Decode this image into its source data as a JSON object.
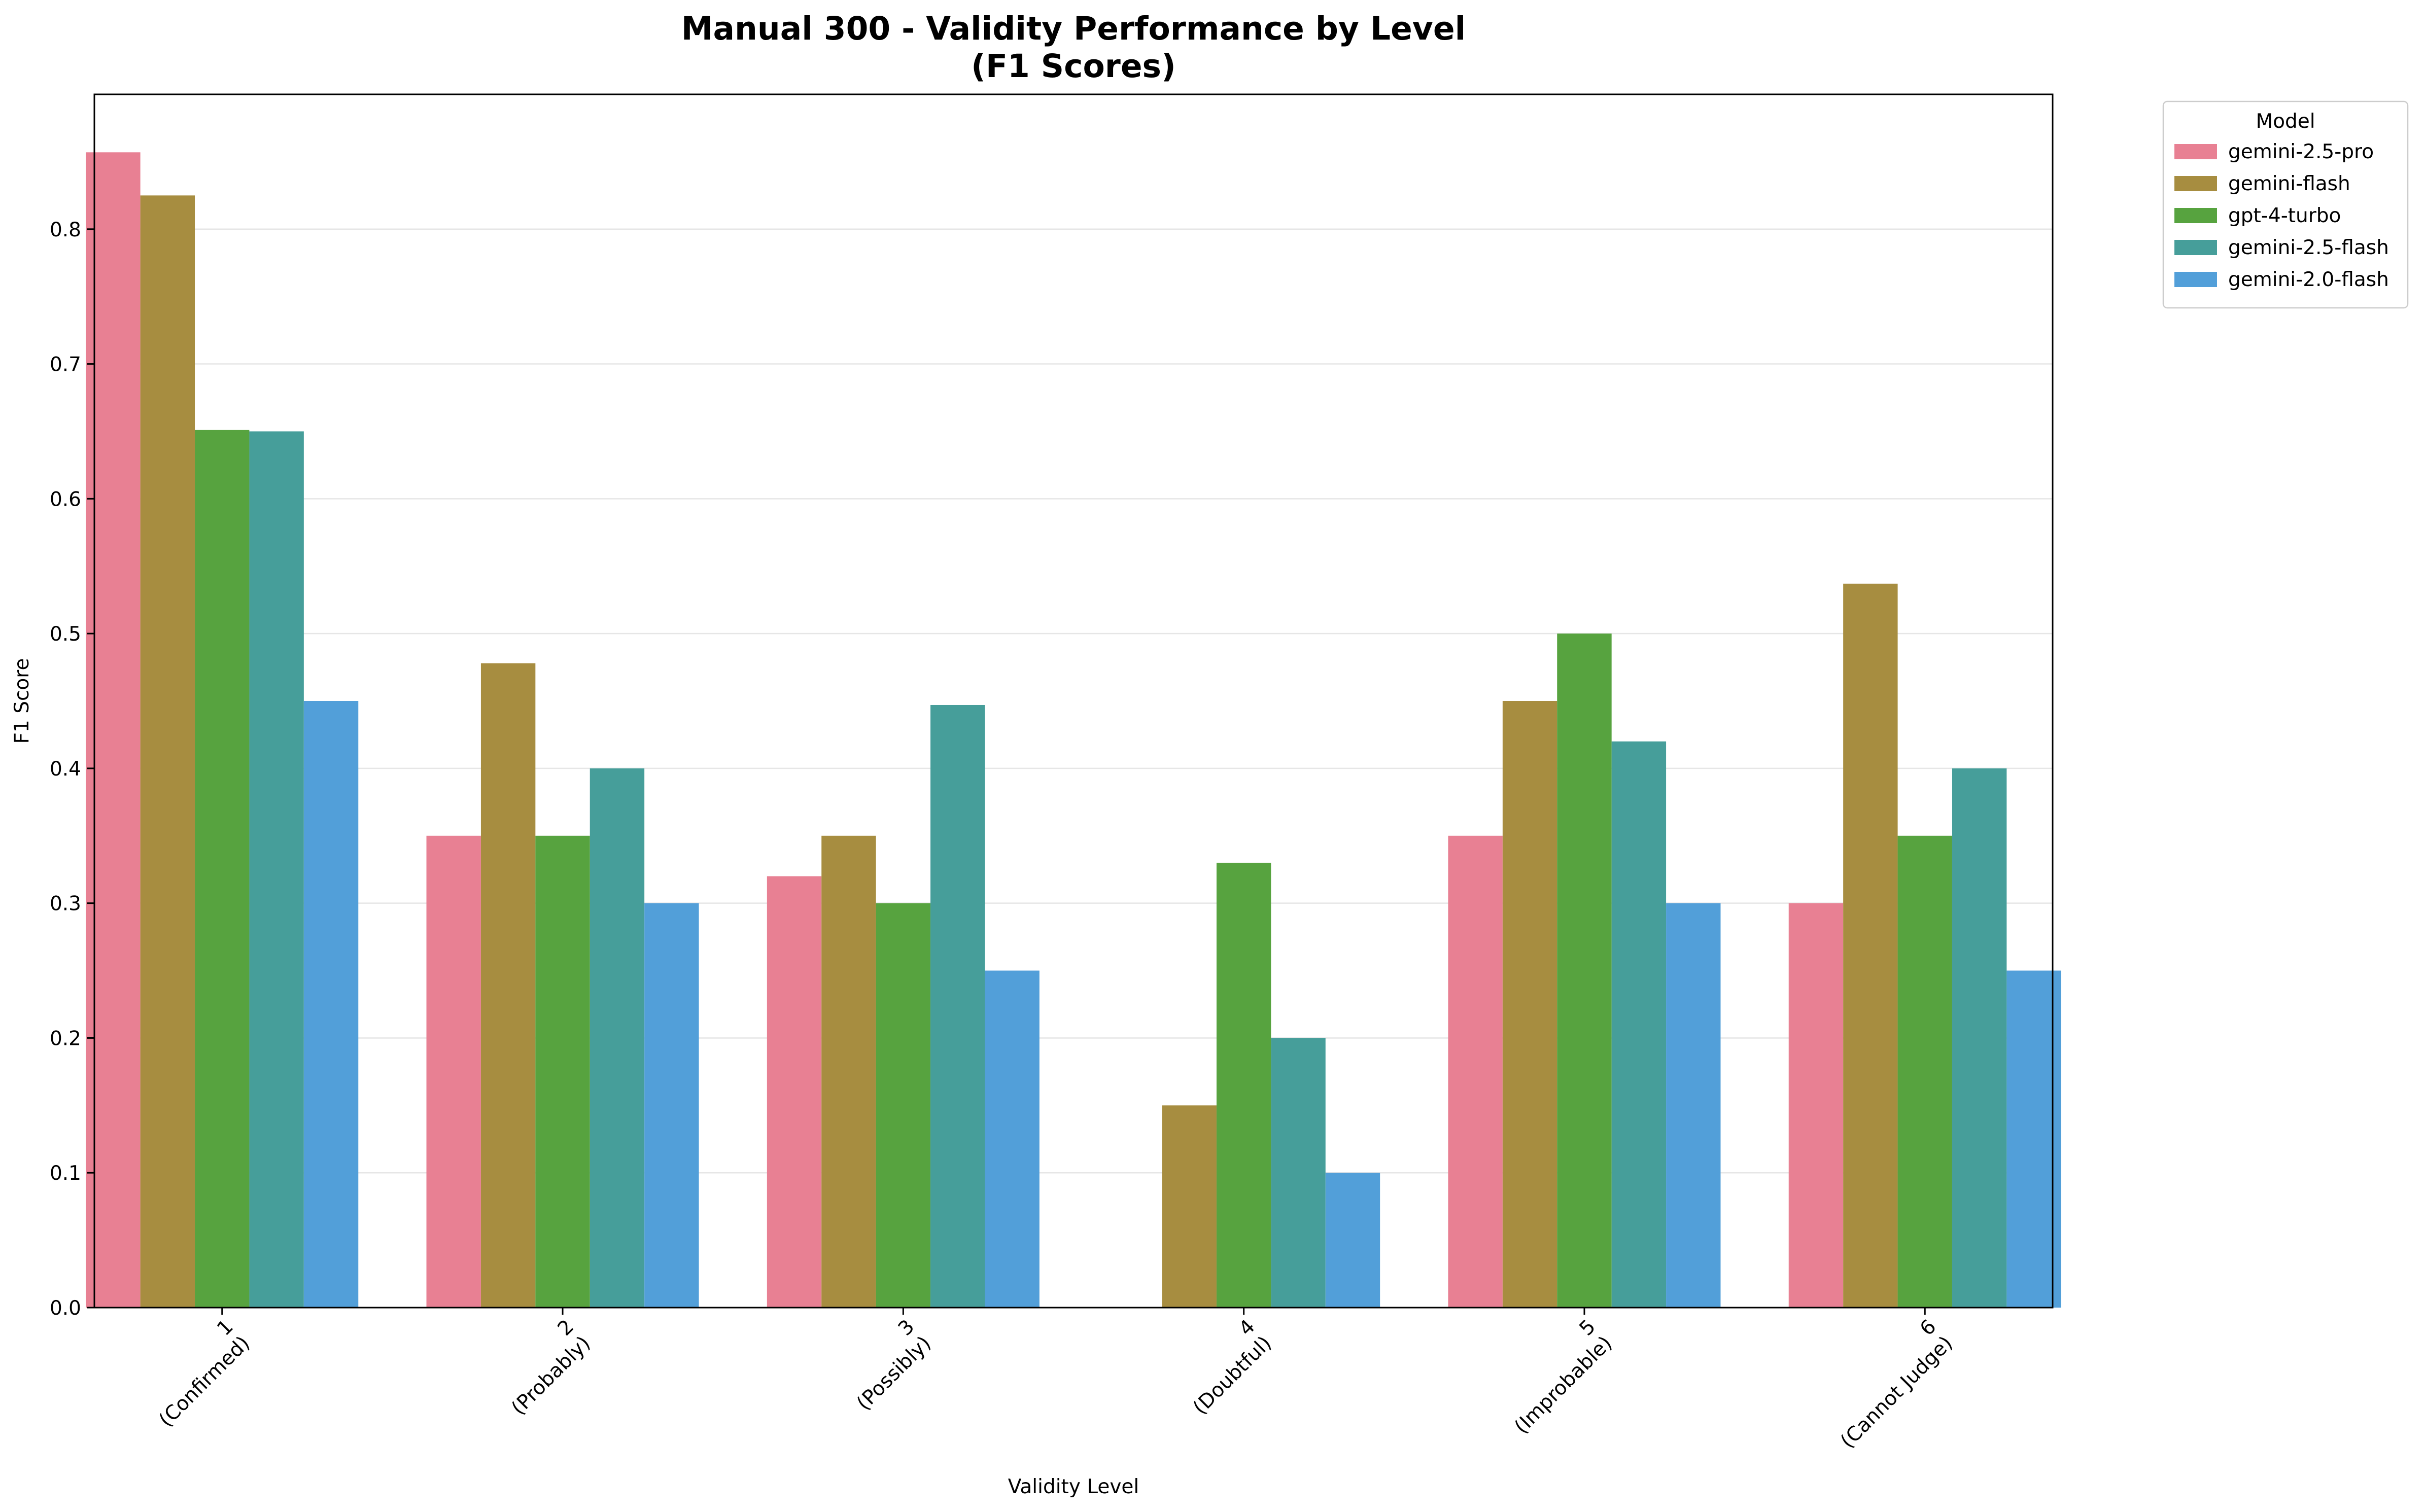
{
  "chart_data": {
    "type": "bar",
    "title": [
      "Manual 300 - Validity Performance by Level",
      "(F1 Scores)"
    ],
    "xlabel": "Validity Level",
    "ylabel": "F1 Score",
    "ylim": [
      0,
      0.9
    ],
    "yticks": [
      "0.0",
      "0.1",
      "0.2",
      "0.3",
      "0.4",
      "0.5",
      "0.6",
      "0.7",
      "0.8"
    ],
    "grid": "horizontal",
    "legend_position": "outside-top-right",
    "legend_title": "Model",
    "categories": [
      [
        "1",
        "(Confirmed)"
      ],
      [
        "2",
        "(Probably)"
      ],
      [
        "3",
        "(Possibly)"
      ],
      [
        "4",
        "(Doubtful)"
      ],
      [
        "5",
        "(Improbable)"
      ],
      [
        "6",
        "(Cannot Judge)"
      ]
    ],
    "series": [
      {
        "name": "gemini-2.5-pro",
        "color": "#e88093",
        "values": [
          0.857,
          0.35,
          0.32,
          0.0,
          0.35,
          0.3
        ]
      },
      {
        "name": "gemini-flash",
        "color": "#a78d40",
        "values": [
          0.825,
          0.478,
          0.35,
          0.15,
          0.45,
          0.537
        ]
      },
      {
        "name": "gpt-4-turbo",
        "color": "#57a33f",
        "values": [
          0.651,
          0.35,
          0.3,
          0.33,
          0.5,
          0.35
        ]
      },
      {
        "name": "gemini-2.5-flash",
        "color": "#469e9a",
        "values": [
          0.65,
          0.4,
          0.447,
          0.2,
          0.42,
          0.4
        ]
      },
      {
        "name": "gemini-2.0-flash",
        "color": "#529fd9",
        "values": [
          0.45,
          0.3,
          0.25,
          0.1,
          0.3,
          0.25
        ]
      }
    ]
  }
}
